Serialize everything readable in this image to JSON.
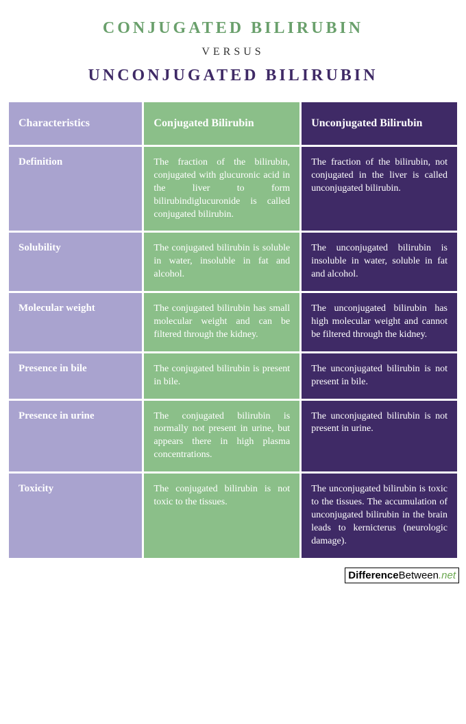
{
  "colors": {
    "col0_bg": "#a9a3cf",
    "col1_bg": "#8bbf89",
    "col2_bg": "#3f2a66",
    "title_main": "#6aa06c",
    "title_sub": "#3f2a66",
    "text": "#ffffff"
  },
  "title": {
    "line1": "CONJUGATED BILIRUBIN",
    "versus": "VERSUS",
    "line2": "UNCONJUGATED BILIRUBIN"
  },
  "header": {
    "c0": "Characteristics",
    "c1": "Conjugated Bilirubin",
    "c2": "Unconjugated Bilirubin"
  },
  "rows": [
    {
      "label": "Definition",
      "c1": "The fraction of the bilirubin, conjugated with glucuronic acid in the liver to form bilirubindiglucuronide is called conjugated bilirubin.",
      "c2": "The fraction of the bilirubin, not conjugated in the liver is called unconjugated bilirubin."
    },
    {
      "label": "Solubility",
      "c1": "The conjugated bilirubin is soluble in water, insoluble in fat and alcohol.",
      "c2": "The unconjugated bilirubin is insoluble in water, soluble in fat and alcohol."
    },
    {
      "label": "Molecular weight",
      "c1": "The conjugated bilirubin has small molecular weight and can be filtered through the kidney.",
      "c2": "The unconjugated bilirubin has high molecular weight and cannot be filtered through the kidney."
    },
    {
      "label": "Presence in bile",
      "c1": "The conjugated bilirubin is present in bile.",
      "c2": "The unconjugated bilirubin is not present in bile."
    },
    {
      "label": "Presence in urine",
      "c1": "The conjugated bilirubin is normally not present in urine, but appears there in high plasma concentrations.",
      "c2": "The unconjugated bilirubin is not present in urine."
    },
    {
      "label": "Toxicity",
      "c1": "The conjugated bilirubin is not toxic to the tissues.",
      "c2": "The unconjugated bilirubin is toxic to the tissues. The accumulation of unconjugated bilirubin in the brain leads to kernicterus (neurologic damage)."
    }
  ],
  "logo": {
    "part1": "Difference",
    "part2": "Between",
    "part3": ".net"
  }
}
